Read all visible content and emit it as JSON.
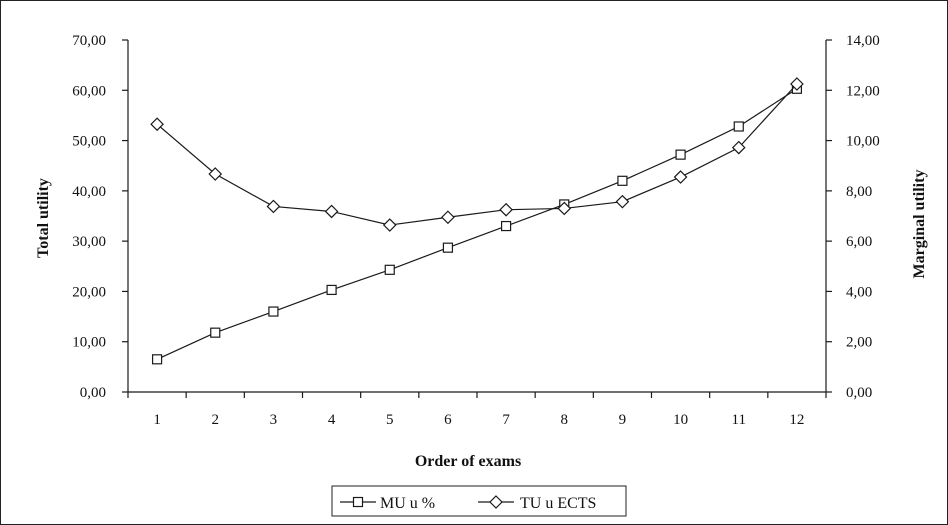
{
  "chart_data": {
    "type": "line",
    "title": "",
    "xlabel": "Order of exams",
    "ylabel_left": "Total utility",
    "ylabel_right": "Marginal utility",
    "categories": [
      "1",
      "2",
      "3",
      "4",
      "5",
      "6",
      "7",
      "8",
      "9",
      "10",
      "11",
      "12"
    ],
    "ylim_left": [
      0,
      70
    ],
    "ylim_right": [
      0,
      14
    ],
    "left_ticks": [
      "0,00",
      "10,00",
      "20,00",
      "30,00",
      "40,00",
      "50,00",
      "60,00",
      "70,00"
    ],
    "right_ticks": [
      "0,00",
      "2,00",
      "4,00",
      "6,00",
      "8,00",
      "10,00",
      "12,00",
      "14,00"
    ],
    "grid": false,
    "legend_position": "bottom",
    "series": [
      {
        "name": "MU u %",
        "axis": "left",
        "marker": "square",
        "values": [
          6.5,
          11.8,
          16.0,
          20.3,
          24.3,
          28.7,
          33.0,
          37.3,
          42.0,
          47.2,
          52.8,
          60.3
        ]
      },
      {
        "name": "TU u ECTS",
        "axis": "right",
        "marker": "diamond",
        "values": [
          10.65,
          8.67,
          7.38,
          7.18,
          6.64,
          6.95,
          7.25,
          7.3,
          7.57,
          8.55,
          9.72,
          12.25
        ]
      }
    ],
    "colors": {
      "line": "#1a1a1a",
      "marker_fill": "#ffffff"
    }
  }
}
